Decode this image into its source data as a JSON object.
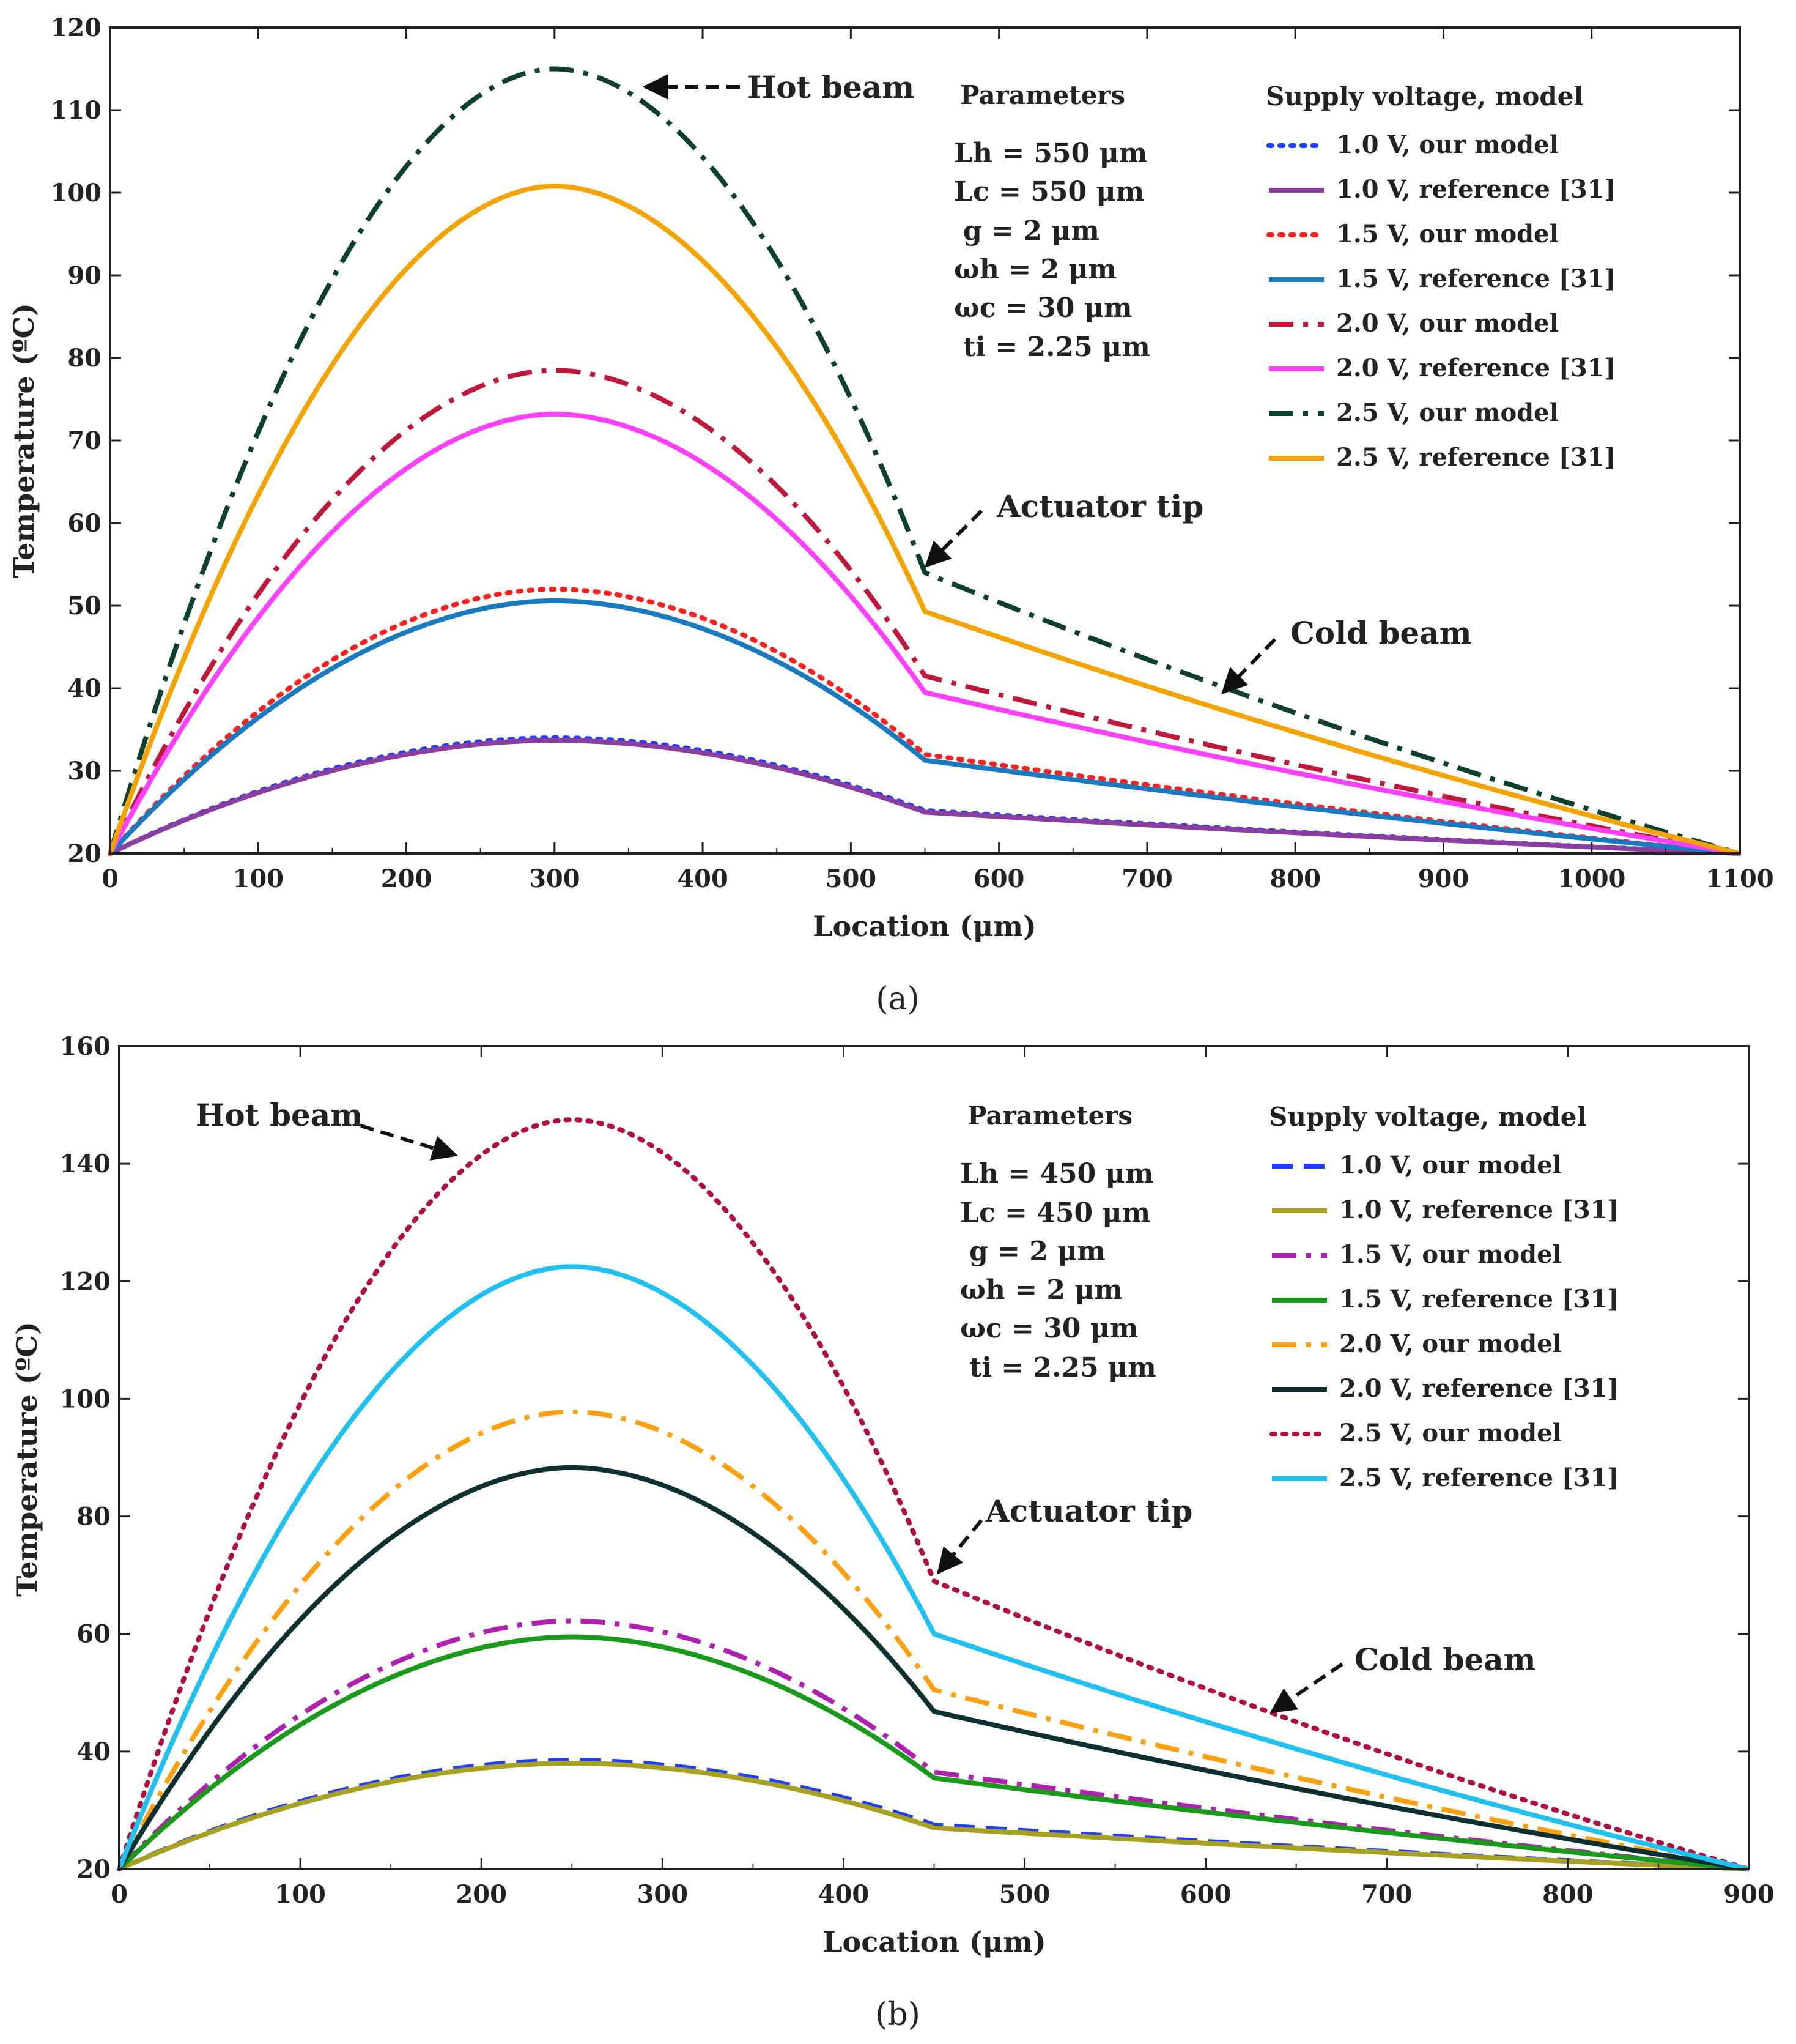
{
  "chart_data": [
    {
      "type": "line",
      "panel_label": "(a)",
      "xlabel": "Location (μm)",
      "ylabel": "Temperature (ºC)",
      "xlim": [
        0,
        1100
      ],
      "ylim": [
        20,
        120
      ],
      "xticks": [
        0,
        100,
        200,
        300,
        400,
        500,
        600,
        700,
        800,
        900,
        1000,
        1100
      ],
      "yticks": [
        20,
        30,
        40,
        50,
        60,
        70,
        80,
        90,
        100,
        110,
        120
      ],
      "tip_x": 550,
      "peak_x": 300,
      "annotations": {
        "hot": "Hot beam",
        "tip": "Actuator tip",
        "cold": "Cold beam"
      },
      "parameters_title": "Parameters",
      "parameters": [
        "Lh = 550 μm",
        "Lc = 550 μm",
        "g = 2 μm",
        "ωh = 2 μm",
        "ωc = 30 μm",
        "ti = 2.25 μm"
      ],
      "legend_title": "Supply voltage, model",
      "series": [
        {
          "name": "1.0 V, our model",
          "peak": 34.0,
          "tip": 25.2,
          "end": 20,
          "color": "#1f3fff",
          "style": "dotted"
        },
        {
          "name": "1.0 V, reference [31]",
          "peak": 33.7,
          "tip": 25.0,
          "end": 20,
          "color": "#8a3fa0",
          "style": "solid"
        },
        {
          "name": "1.5 V, our model",
          "peak": 52.0,
          "tip": 32.0,
          "end": 20,
          "color": "#ff2020",
          "style": "dotted"
        },
        {
          "name": "1.5 V, reference [31]",
          "peak": 50.6,
          "tip": 31.3,
          "end": 20,
          "color": "#1a7ac0",
          "style": "solid"
        },
        {
          "name": "2.0 V, our model",
          "peak": 78.5,
          "tip": 41.5,
          "end": 20,
          "color": "#c0183a",
          "style": "dashdot"
        },
        {
          "name": "2.0 V, reference [31]",
          "peak": 73.2,
          "tip": 39.5,
          "end": 20,
          "color": "#ff40ff",
          "style": "solid"
        },
        {
          "name": "2.5 V, our model",
          "peak": 115.0,
          "tip": 54.0,
          "end": 20,
          "color": "#0e4030",
          "style": "dashdot"
        },
        {
          "name": "2.5 V, reference [31]",
          "peak": 100.8,
          "tip": 49.3,
          "end": 20,
          "color": "#f5a300",
          "style": "solid"
        }
      ]
    },
    {
      "type": "line",
      "panel_label": "(b)",
      "xlabel": "Location (μm)",
      "ylabel": "Temperature (ºC)",
      "xlim": [
        0,
        900
      ],
      "ylim": [
        20,
        160
      ],
      "xticks": [
        0,
        100,
        200,
        300,
        400,
        500,
        600,
        700,
        800,
        900
      ],
      "yticks": [
        20,
        40,
        60,
        80,
        100,
        120,
        140,
        160
      ],
      "tip_x": 450,
      "peak_x": 250,
      "annotations": {
        "hot": "Hot beam",
        "tip": "Actuator tip",
        "cold": "Cold beam"
      },
      "parameters_title": "Parameters",
      "parameters": [
        "Lh = 450 μm",
        "Lc = 450 μm",
        "g = 2 μm",
        "ωh = 2 μm",
        "ωc = 30 μm",
        "ti = 2.25 μm"
      ],
      "legend_title": "Supply voltage, model",
      "series": [
        {
          "name": "1.0 V, our model",
          "peak": 38.5,
          "tip": 27.5,
          "end": 20,
          "color": "#1f3fff",
          "style": "dashed"
        },
        {
          "name": "1.0 V, reference [31]",
          "peak": 38.0,
          "tip": 27.0,
          "end": 20,
          "color": "#a8a020",
          "style": "solid"
        },
        {
          "name": "1.5 V, our model",
          "peak": 62.2,
          "tip": 36.5,
          "end": 20,
          "color": "#b020b0",
          "style": "dashdot"
        },
        {
          "name": "1.5 V, reference [31]",
          "peak": 59.5,
          "tip": 35.5,
          "end": 20,
          "color": "#1a9a1a",
          "style": "solid"
        },
        {
          "name": "2.0 V, our model",
          "peak": 97.8,
          "tip": 50.5,
          "end": 20,
          "color": "#ffa010",
          "style": "dashdot"
        },
        {
          "name": "2.0 V, reference [31]",
          "peak": 88.3,
          "tip": 46.8,
          "end": 20,
          "color": "#0e3030",
          "style": "solid"
        },
        {
          "name": "2.5 V, our model",
          "peak": 147.5,
          "tip": 69.0,
          "end": 20,
          "color": "#b01040",
          "style": "dotted"
        },
        {
          "name": "2.5 V, reference [31]",
          "peak": 122.5,
          "tip": 60.0,
          "end": 20,
          "color": "#20c0f0",
          "style": "solid"
        }
      ]
    }
  ]
}
